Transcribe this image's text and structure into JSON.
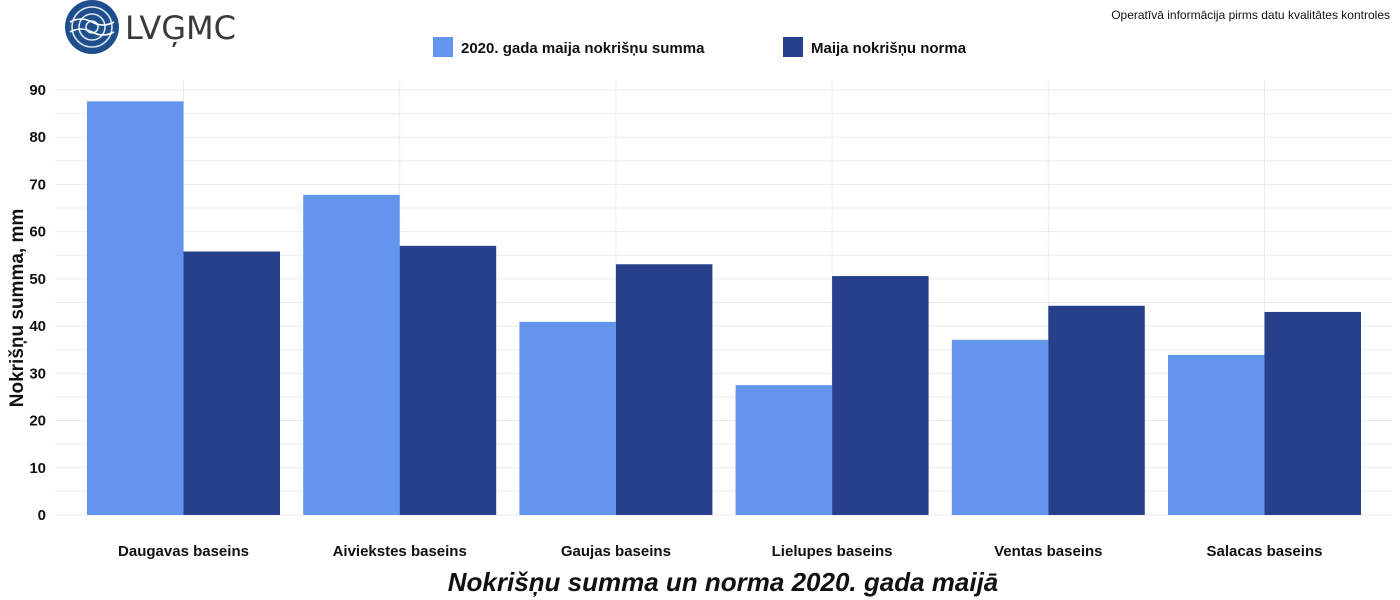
{
  "logo": {
    "text": "LVĢMC"
  },
  "note": "Operatīvā informācija pirms datu kvalitātes kontroles",
  "chart_data": {
    "type": "bar",
    "title": "Nokrišņu summa un norma 2020. gada maijā",
    "xlabel": "",
    "ylabel": "Nokrišņu summa, mm",
    "ylim": [
      0,
      90
    ],
    "yticks": [
      0,
      10,
      20,
      30,
      40,
      50,
      60,
      70,
      80,
      90
    ],
    "grid": true,
    "legend_position": "top",
    "categories": [
      "Daugavas baseins",
      "Aiviekstes baseins",
      "Gaujas baseins",
      "Lielupes baseins",
      "Ventas baseins",
      "Salacas baseins"
    ],
    "series": [
      {
        "name": "2020. gada maija nokrišņu summa",
        "color": "#6495ED",
        "values": [
          87.6,
          67.8,
          40.9,
          27.5,
          37.1,
          33.9
        ]
      },
      {
        "name": "Maija nokrišņu norma",
        "color": "#27408B",
        "values": [
          55.8,
          57.0,
          53.1,
          50.6,
          44.3,
          43.0
        ]
      }
    ]
  }
}
